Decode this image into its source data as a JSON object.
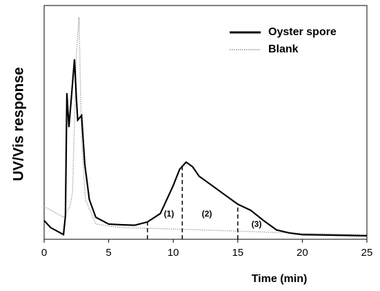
{
  "chart_data": {
    "type": "line",
    "xlabel": "Time (min)",
    "ylabel": "UV/Vis response",
    "xlim": [
      0,
      25
    ],
    "xticks": [
      0,
      5,
      10,
      15,
      20,
      25
    ],
    "ylim": [
      0,
      100
    ],
    "legend": "upper right",
    "series": [
      {
        "name": "Oyster spore",
        "color": "#000000",
        "style": "solid",
        "x": [
          0,
          0.5,
          1.5,
          1.65,
          1.76,
          1.92,
          2.1,
          2.35,
          2.5,
          2.6,
          2.9,
          3.15,
          3.5,
          4,
          5,
          6,
          7,
          8,
          9,
          10,
          10.5,
          11,
          11.5,
          12,
          13,
          14,
          15,
          16,
          17,
          18,
          19,
          20,
          22,
          25
        ],
        "values": [
          8,
          5,
          2,
          10,
          62.5,
          48,
          60,
          77,
          60,
          51,
          53,
          32,
          17,
          9.4,
          6.5,
          6.2,
          6,
          7.4,
          11,
          23,
          30,
          33,
          31,
          27,
          23,
          19,
          15,
          12.4,
          8,
          4,
          2.7,
          2,
          1.8,
          1.5
        ]
      },
      {
        "name": "Blank",
        "color": "#aaaaaa",
        "style": "dotted",
        "x": [
          0,
          1,
          1.5,
          2,
          2.2,
          2.4,
          2.5,
          2.7,
          2.9,
          3.2,
          4,
          6,
          10,
          15,
          20,
          25
        ],
        "values": [
          14,
          11,
          9.4,
          14,
          20,
          60,
          79,
          95,
          43,
          17,
          6.5,
          5,
          4.4,
          3.5,
          2.5,
          2
        ]
      }
    ],
    "dividers": [
      8,
      10.7,
      15
    ],
    "annotations": [
      "(1)",
      "(2)",
      "(3)"
    ]
  }
}
